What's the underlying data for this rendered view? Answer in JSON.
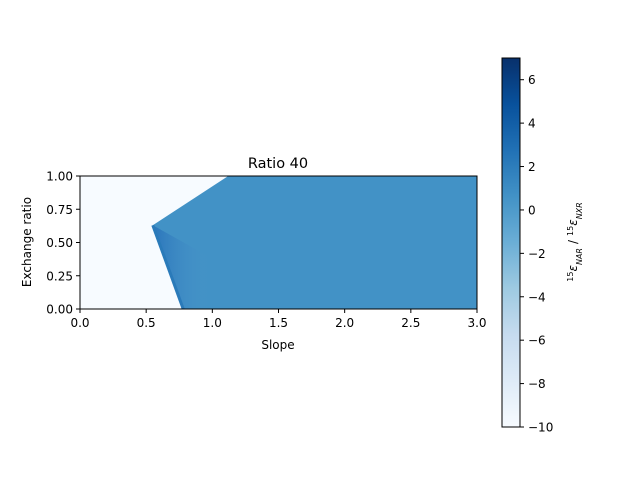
{
  "chart_data": {
    "type": "heatmap",
    "title": "Ratio 40",
    "xlabel": "Slope",
    "ylabel": "Exchange ratio",
    "xlim": [
      0.0,
      3.0
    ],
    "ylim": [
      0.0,
      1.0
    ],
    "xticks": [
      "0.0",
      "0.5",
      "1.0",
      "1.5",
      "2.0",
      "2.5",
      "3.0"
    ],
    "yticks": [
      "0.00",
      "0.25",
      "0.50",
      "0.75",
      "1.00"
    ],
    "grid": false,
    "colormap": "Blues",
    "colormap_colors": [
      "#f7fbff",
      "#deebf7",
      "#c6dbef",
      "#9ecae1",
      "#6baed6",
      "#4292c6",
      "#2171b5",
      "#08519c",
      "#08306b"
    ],
    "colorbar": {
      "label_main": "ε",
      "label_numerator_sup": "15",
      "label_numerator_sub": "NAR",
      "label_separator": "/",
      "label_denominator_sup": "15",
      "label_denominator_sub": "NXR",
      "vmin": -10,
      "vmax": 7,
      "ticks": [
        "6",
        "4",
        "2",
        "0",
        "−2",
        "−4",
        "−6",
        "−8",
        "−10"
      ]
    },
    "regions": {
      "masked_value": -10,
      "plateau_value": 0.6,
      "edge_value": 2.2,
      "boundary_points": [
        [
          0.78,
          0.0
        ],
        [
          0.55,
          0.63
        ],
        [
          1.12,
          1.0
        ]
      ]
    }
  }
}
